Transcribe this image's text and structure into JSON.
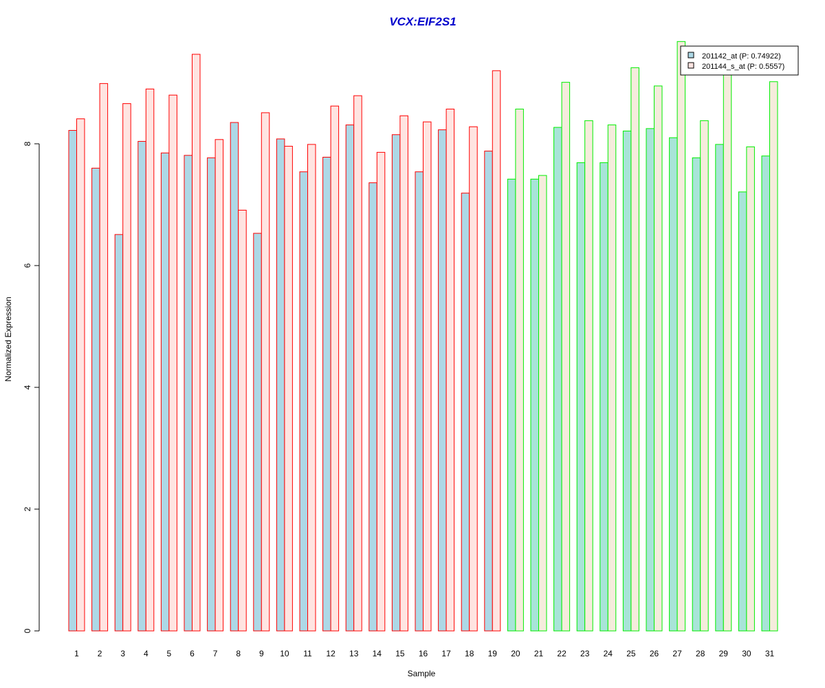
{
  "chart_data": {
    "type": "bar",
    "title": "VCX:EIF2S1",
    "xlabel": "Sample",
    "ylabel": "Normalized Expression",
    "ylim": [
      0,
      9.8
    ],
    "yticks": [
      0,
      2,
      4,
      6,
      8
    ],
    "categories": [
      "1",
      "2",
      "3",
      "4",
      "5",
      "6",
      "7",
      "8",
      "9",
      "10",
      "11",
      "12",
      "13",
      "14",
      "15",
      "16",
      "17",
      "18",
      "19",
      "20",
      "21",
      "22",
      "23",
      "24",
      "25",
      "26",
      "27",
      "28",
      "29",
      "30",
      "31"
    ],
    "groups": [
      1,
      1,
      1,
      1,
      1,
      1,
      1,
      1,
      1,
      1,
      1,
      1,
      1,
      1,
      1,
      1,
      1,
      1,
      1,
      2,
      2,
      2,
      2,
      2,
      2,
      2,
      2,
      2,
      2,
      2,
      2
    ],
    "series": [
      {
        "name": "201142_at (P: 0.74922)",
        "values": [
          8.22,
          7.6,
          6.51,
          8.04,
          7.85,
          7.81,
          7.77,
          8.35,
          6.53,
          8.08,
          7.54,
          7.78,
          8.31,
          7.36,
          8.15,
          7.54,
          8.23,
          7.19,
          7.88,
          7.42,
          7.42,
          8.27,
          7.69,
          7.69,
          8.21,
          8.25,
          8.1,
          7.77,
          7.99,
          7.21,
          7.8
        ]
      },
      {
        "name": "201144_s_at (P: 0.5557)",
        "values": [
          8.41,
          8.99,
          8.66,
          8.9,
          8.8,
          9.47,
          8.07,
          6.91,
          8.51,
          7.96,
          7.99,
          8.62,
          8.79,
          7.86,
          8.46,
          8.36,
          8.57,
          8.28,
          9.2,
          8.57,
          7.48,
          9.01,
          8.38,
          8.31,
          9.25,
          8.95,
          9.68,
          8.38,
          9.27,
          7.95,
          9.02
        ]
      }
    ],
    "colors": {
      "series1_fill_group1": "#add8e6",
      "series2_fill_group1": "#ffe4e1",
      "series1_fill_group2": "#a8e4d8",
      "series2_fill_group2": "#f5ecdc",
      "border_group1": "#ff0000",
      "border_group2": "#00ee00",
      "title": "#0000cc",
      "axis": "#000000"
    },
    "legend_position": "top-right"
  }
}
